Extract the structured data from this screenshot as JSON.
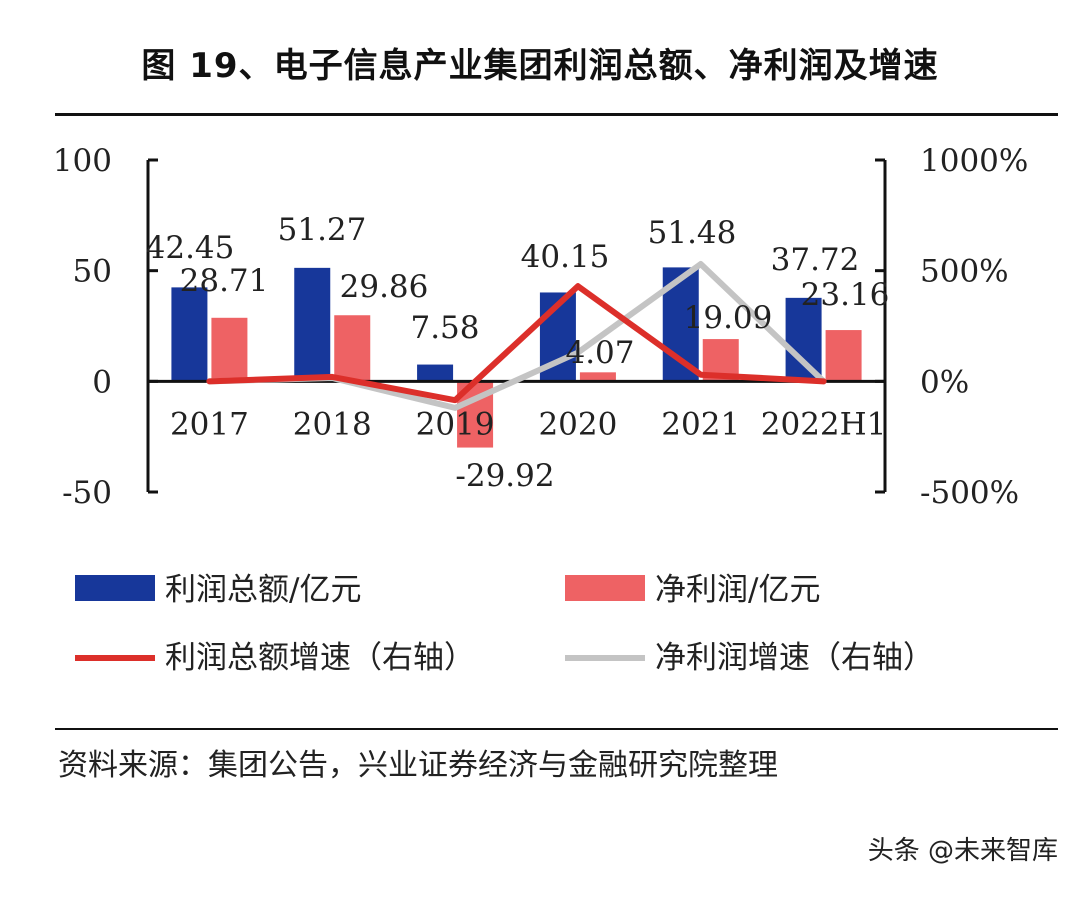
{
  "title": "图 19、电子信息产业集团利润总额、净利润及增速",
  "source": "资料来源：集团公告，兴业证券经济与金融研究院整理",
  "watermark": "头条 @未来智库",
  "colors": {
    "profit_bar": "#17379a",
    "net_bar": "#ee6264",
    "profit_growth_line": "#dc2f2a",
    "net_growth_line": "#c4c4c4"
  },
  "legend": {
    "profit_total": "利润总额/亿元",
    "net_profit": "净利润/亿元",
    "profit_growth": "利润总额增速（右轴）",
    "net_growth": "净利润增速（右轴）"
  },
  "chart_data": {
    "type": "bar+line",
    "title": "图 19、电子信息产业集团利润总额、净利润及增速",
    "categories": [
      "2017",
      "2018",
      "2019",
      "2020",
      "2021",
      "2022H1"
    ],
    "left_axis": {
      "min": -50,
      "max": 100,
      "ticks": [
        "100",
        "50",
        "0",
        "-50"
      ]
    },
    "right_axis": {
      "min": -500,
      "max": 1000,
      "ticks": [
        "1000%",
        "500%",
        "0%",
        "-500%"
      ]
    },
    "series": [
      {
        "name": "利润总额/亿元",
        "kind": "bar",
        "axis": "left",
        "values": [
          42.45,
          51.27,
          7.58,
          40.15,
          51.48,
          37.72
        ],
        "labels": [
          "42.45",
          "51.27",
          "7.58",
          "40.15",
          "51.48",
          "37.72"
        ]
      },
      {
        "name": "净利润/亿元",
        "kind": "bar",
        "axis": "left",
        "values": [
          28.71,
          29.86,
          -29.92,
          4.07,
          19.09,
          23.16
        ],
        "labels": [
          "28.71",
          "29.86",
          "-29.92",
          "4.07",
          "19.09",
          "23.16"
        ]
      },
      {
        "name": "利润总额增速（右轴）",
        "kind": "line",
        "axis": "right",
        "values": [
          0,
          20,
          -85,
          430,
          30,
          0
        ]
      },
      {
        "name": "净利润增速（右轴）",
        "kind": "line",
        "axis": "right",
        "values": [
          0,
          15,
          -120,
          130,
          530,
          0
        ]
      }
    ]
  }
}
